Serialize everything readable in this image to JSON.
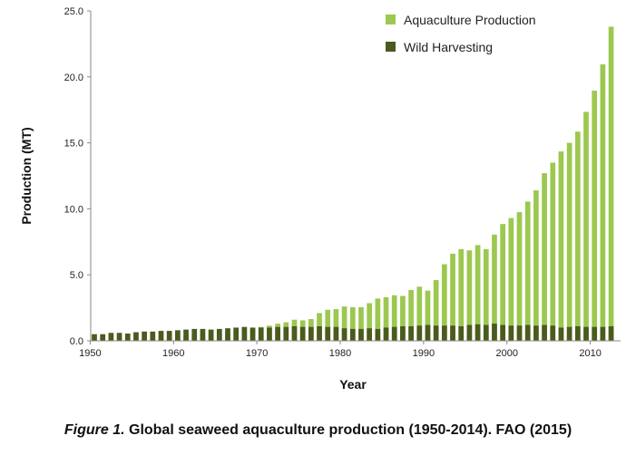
{
  "chart_data": {
    "type": "bar",
    "title": "",
    "xlabel": "Year",
    "ylabel": "Production (MT)",
    "xlim": [
      1950,
      2012
    ],
    "ylim": [
      0,
      25
    ],
    "yticks": [
      "0.0",
      "5.0",
      "10.0",
      "15.0",
      "20.0",
      "25.0"
    ],
    "xticks": [
      "1950",
      "1960",
      "1970",
      "1980",
      "1990",
      "2000",
      "2010"
    ],
    "legend_position": "top-right",
    "categories": [
      1950,
      1951,
      1952,
      1953,
      1954,
      1955,
      1956,
      1957,
      1958,
      1959,
      1960,
      1961,
      1962,
      1963,
      1964,
      1965,
      1966,
      1967,
      1968,
      1969,
      1970,
      1971,
      1972,
      1973,
      1974,
      1975,
      1976,
      1977,
      1978,
      1979,
      1980,
      1981,
      1982,
      1983,
      1984,
      1985,
      1986,
      1987,
      1988,
      1989,
      1990,
      1991,
      1992,
      1993,
      1994,
      1995,
      1996,
      1997,
      1998,
      1999,
      2000,
      2001,
      2002,
      2003,
      2004,
      2005,
      2006,
      2007,
      2008,
      2009,
      2010,
      2011,
      2012
    ],
    "series": [
      {
        "name": "Aquaculture Production",
        "color": "#9cc850",
        "values": [
          0.01,
          0.02,
          0.03,
          0.05,
          0.07,
          0.1,
          0.13,
          0.17,
          0.2,
          0.25,
          0.3,
          0.35,
          0.4,
          0.45,
          0.5,
          0.55,
          0.65,
          0.75,
          0.85,
          0.95,
          1.05,
          1.15,
          1.3,
          1.4,
          1.6,
          1.55,
          1.65,
          2.1,
          2.35,
          2.4,
          2.6,
          2.55,
          2.55,
          2.85,
          3.2,
          3.3,
          3.45,
          3.4,
          3.85,
          4.1,
          3.8,
          4.6,
          5.8,
          6.6,
          6.95,
          6.85,
          7.25,
          6.95,
          8.05,
          8.85,
          9.3,
          9.75,
          10.55,
          11.4,
          12.7,
          13.5,
          14.35,
          15.0,
          15.85,
          17.35,
          18.95,
          20.95,
          23.8
        ]
      },
      {
        "name": "Wild Harvesting",
        "color": "#4b5a1e",
        "values": [
          0.5,
          0.5,
          0.6,
          0.6,
          0.55,
          0.65,
          0.7,
          0.7,
          0.75,
          0.75,
          0.8,
          0.85,
          0.9,
          0.9,
          0.85,
          0.9,
          0.95,
          1.0,
          1.05,
          1.0,
          1.0,
          1.0,
          1.05,
          1.05,
          1.1,
          1.05,
          1.05,
          1.1,
          1.05,
          1.05,
          0.95,
          0.9,
          0.9,
          0.95,
          0.9,
          1.0,
          1.05,
          1.1,
          1.1,
          1.15,
          1.2,
          1.15,
          1.15,
          1.15,
          1.1,
          1.2,
          1.25,
          1.2,
          1.3,
          1.2,
          1.15,
          1.15,
          1.2,
          1.15,
          1.2,
          1.15,
          1.0,
          1.05,
          1.1,
          1.05,
          1.05,
          1.05,
          1.1
        ]
      }
    ]
  },
  "caption": {
    "lead": "Figure 1.",
    "text": " Global seaweed aquaculture production (1950-2014). FAO (2015)"
  }
}
